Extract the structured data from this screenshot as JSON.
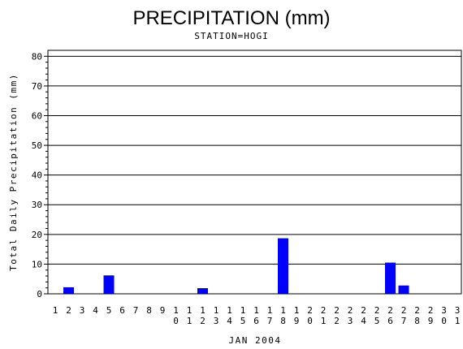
{
  "chart_data": {
    "type": "bar",
    "title": "PRECIPITATION (mm)",
    "subtitle": "STATION=HOGI",
    "xlabel": "JAN 2004",
    "ylabel": "Total Daily Precipitation (mm)",
    "categories": [
      "1",
      "2",
      "3",
      "4",
      "5",
      "6",
      "7",
      "8",
      "9",
      "10",
      "11",
      "12",
      "13",
      "14",
      "15",
      "16",
      "17",
      "18",
      "19",
      "20",
      "21",
      "22",
      "23",
      "24",
      "25",
      "26",
      "27",
      "28",
      "29",
      "30",
      "31"
    ],
    "values": [
      0,
      2.2,
      0,
      0,
      6.2,
      0,
      0,
      0,
      0,
      0,
      0,
      1.9,
      0,
      0,
      0,
      0,
      0,
      18.7,
      0,
      0,
      0,
      0,
      0,
      0,
      0,
      10.5,
      2.8,
      0,
      0,
      0,
      0
    ],
    "ylim": [
      0,
      82
    ],
    "yticks": [
      0,
      10,
      20,
      30,
      40,
      50,
      60,
      70,
      80
    ],
    "grid": true,
    "legend": "none",
    "bar_color": "#0000ff"
  }
}
